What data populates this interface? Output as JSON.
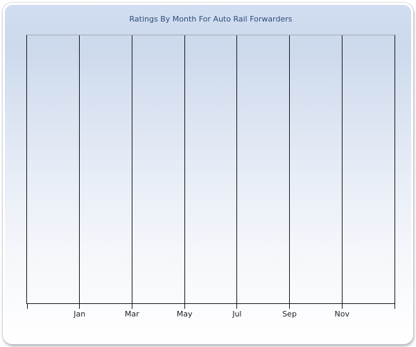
{
  "chart_data": {
    "type": "line",
    "title": "Ratings By Month For Auto Rail Forwarders",
    "xlabel": "",
    "ylabel": "",
    "x_tick_labels": [
      "Jan",
      "Mar",
      "May",
      "Jul",
      "Sep",
      "Nov"
    ],
    "y_tick_labels": [],
    "series": [],
    "grid": "vertical-gridlines-only",
    "legend": "none",
    "plot_empty": true,
    "colors": {
      "panel_gradient_top": "#d1def1",
      "panel_gradient_mid": "#e6ecf6",
      "panel_gradient_bottom": "#ffffff",
      "panel_border": "#ffffff",
      "gridline": "#15171a",
      "axis_line": "#15171a",
      "plot_top_border": "#a2aab8",
      "title_text": "#2f4d76",
      "tick_label_text": "#1c1f26"
    }
  }
}
